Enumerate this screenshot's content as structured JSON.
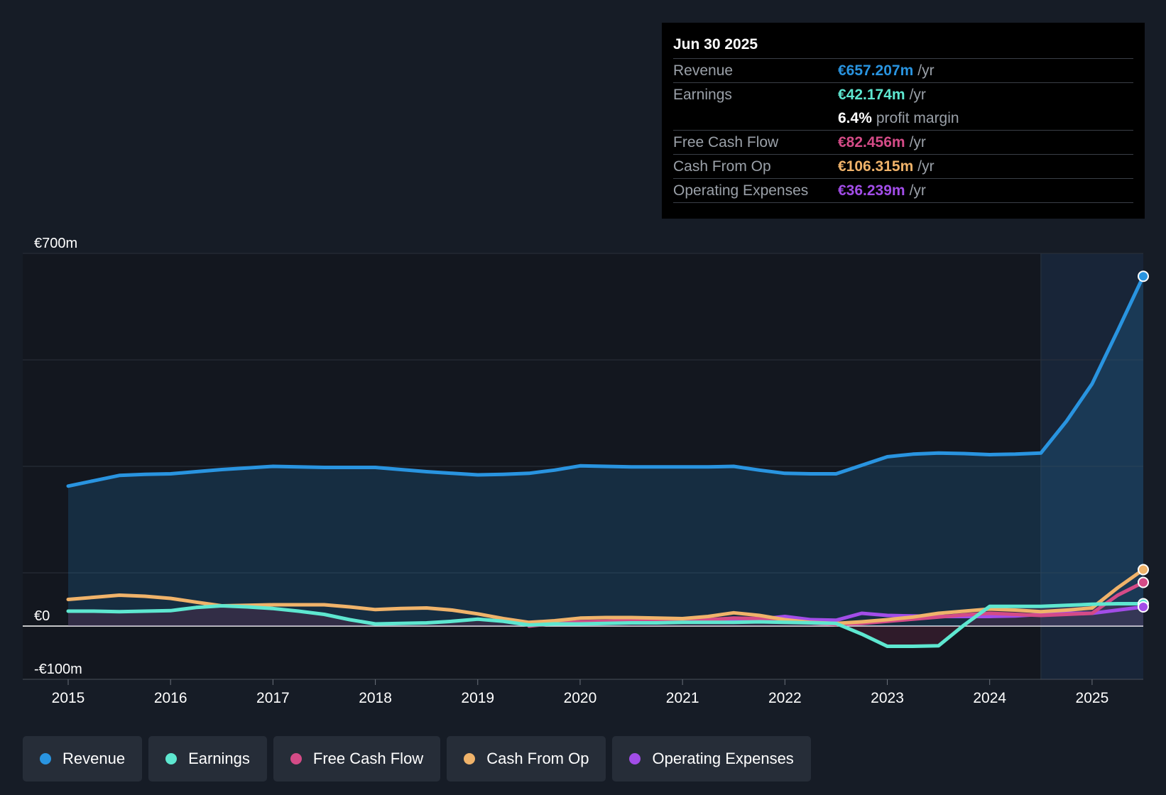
{
  "tooltip": {
    "date": "Jun 30 2025",
    "rows": [
      {
        "label": "Revenue",
        "value": "€657.207m",
        "unit": "/yr",
        "color": "#2994e0"
      },
      {
        "label": "Earnings",
        "value": "€42.174m",
        "unit": "/yr",
        "color": "#5ee7d0"
      },
      {
        "margin_value": "6.4%",
        "margin_label": "profit margin"
      },
      {
        "label": "Free Cash Flow",
        "value": "€82.456m",
        "unit": "/yr",
        "color": "#d44b87"
      },
      {
        "label": "Cash From Op",
        "value": "€106.315m",
        "unit": "/yr",
        "color": "#f0b36a"
      },
      {
        "label": "Operating Expenses",
        "value": "€36.239m",
        "unit": "/yr",
        "color": "#a24de8"
      }
    ]
  },
  "legend": [
    {
      "label": "Revenue",
      "color": "#2994e0"
    },
    {
      "label": "Earnings",
      "color": "#5ee7d0"
    },
    {
      "label": "Free Cash Flow",
      "color": "#d44b87"
    },
    {
      "label": "Cash From Op",
      "color": "#f0b36a"
    },
    {
      "label": "Operating Expenses",
      "color": "#a24de8"
    }
  ],
  "chart_data": {
    "type": "line",
    "title": "",
    "xlabel": "",
    "ylabel": "",
    "ylim": [
      -100,
      700
    ],
    "x_range": [
      2014.55,
      2025.5
    ],
    "forecast_start": 2024.5,
    "y_tick_labels": [
      {
        "value": 700,
        "label": "€700m"
      },
      {
        "value": 0,
        "label": "€0"
      },
      {
        "value": -100,
        "label": "-€100m"
      }
    ],
    "x_ticks": [
      "2015",
      "2016",
      "2017",
      "2018",
      "2019",
      "2020",
      "2021",
      "2022",
      "2023",
      "2024",
      "2025"
    ],
    "series": [
      {
        "name": "Revenue",
        "color": "#2994e0",
        "fill": true,
        "x": [
          2015,
          2015.25,
          2015.5,
          2015.75,
          2016,
          2016.25,
          2016.5,
          2016.75,
          2017,
          2017.25,
          2017.5,
          2017.75,
          2018,
          2018.25,
          2018.5,
          2018.75,
          2019,
          2019.25,
          2019.5,
          2019.75,
          2020,
          2020.25,
          2020.5,
          2020.75,
          2021,
          2021.25,
          2021.5,
          2021.75,
          2022,
          2022.25,
          2022.5,
          2022.75,
          2023,
          2023.25,
          2023.5,
          2023.75,
          2024,
          2024.25,
          2024.5,
          2024.75,
          2025,
          2025.25,
          2025.5
        ],
        "values": [
          263,
          273,
          283,
          285,
          286,
          290,
          294,
          297,
          300,
          299,
          298,
          298,
          298,
          294,
          290,
          287,
          284,
          285,
          287,
          293,
          301,
          300,
          299,
          299,
          299,
          299,
          300,
          293,
          287,
          286,
          286,
          302,
          318,
          323,
          325,
          324,
          322,
          323,
          325,
          385,
          455,
          555,
          657
        ]
      },
      {
        "name": "Earnings",
        "color": "#5ee7d0",
        "fill": false,
        "x": [
          2015,
          2015.25,
          2015.5,
          2015.75,
          2016,
          2016.25,
          2016.5,
          2016.75,
          2017,
          2017.25,
          2017.5,
          2017.75,
          2018,
          2018.25,
          2018.5,
          2018.75,
          2019,
          2019.25,
          2019.5,
          2019.75,
          2020,
          2020.25,
          2020.5,
          2020.75,
          2021,
          2021.25,
          2021.5,
          2021.75,
          2022,
          2022.25,
          2022.5,
          2022.75,
          2023,
          2023.25,
          2023.5,
          2023.75,
          2024,
          2024.25,
          2024.5,
          2024.75,
          2025,
          2025.25,
          2025.5
        ],
        "values": [
          28,
          28,
          27,
          28,
          29,
          35,
          38,
          36,
          33,
          28,
          22,
          12,
          4,
          5,
          6,
          9,
          13,
          9,
          2,
          4,
          4,
          5,
          6,
          6,
          7,
          7,
          7,
          8,
          7,
          6,
          5,
          -15,
          -38,
          -38,
          -37,
          2,
          37,
          37,
          37,
          39,
          41,
          42,
          42
        ]
      },
      {
        "name": "Free Cash Flow",
        "color": "#d44b87",
        "fill": false,
        "x": [
          2019.5,
          2019.75,
          2020,
          2020.25,
          2020.5,
          2020.75,
          2021,
          2021.25,
          2021.5,
          2021.75,
          2022,
          2022.25,
          2022.5,
          2022.75,
          2023,
          2023.25,
          2023.5,
          2023.75,
          2024,
          2024.25,
          2024.5,
          2024.75,
          2025,
          2025.25,
          2025.5
        ],
        "values": [
          0,
          5,
          8,
          9,
          10,
          10,
          10,
          12,
          15,
          14,
          10,
          6,
          3,
          5,
          9,
          13,
          17,
          21,
          24,
          22,
          20,
          22,
          24,
          58,
          82
        ]
      },
      {
        "name": "Cash From Op",
        "color": "#f0b36a",
        "fill": false,
        "x": [
          2015,
          2015.25,
          2015.5,
          2015.75,
          2016,
          2016.25,
          2016.5,
          2016.75,
          2017,
          2017.25,
          2017.5,
          2017.75,
          2018,
          2018.25,
          2018.5,
          2018.75,
          2019,
          2019.25,
          2019.5,
          2019.75,
          2020,
          2020.25,
          2020.5,
          2020.75,
          2021,
          2021.25,
          2021.5,
          2021.75,
          2022,
          2022.25,
          2022.5,
          2022.75,
          2023,
          2023.25,
          2023.5,
          2023.75,
          2024,
          2024.25,
          2024.5,
          2024.75,
          2025,
          2025.25,
          2025.5
        ],
        "values": [
          50,
          54,
          58,
          56,
          52,
          45,
          38,
          39,
          40,
          40,
          40,
          36,
          31,
          33,
          34,
          30,
          23,
          14,
          7,
          10,
          15,
          16,
          16,
          15,
          14,
          18,
          25,
          20,
          12,
          7,
          5,
          8,
          12,
          17,
          24,
          28,
          32,
          30,
          27,
          30,
          34,
          72,
          106
        ]
      },
      {
        "name": "Operating Expenses",
        "color": "#a24de8",
        "fill": false,
        "x": [
          2020.5,
          2020.75,
          2021,
          2021.25,
          2021.5,
          2021.75,
          2022,
          2022.25,
          2022.5,
          2022.75,
          2023,
          2023.25,
          2023.5,
          2023.75,
          2024,
          2024.25,
          2024.5,
          2024.75,
          2025,
          2025.25,
          2025.5
        ],
        "values": [
          8,
          9,
          10,
          11,
          12,
          13,
          18,
          12,
          11,
          24,
          20,
          19,
          18,
          18,
          18,
          19,
          22,
          24,
          24,
          30,
          36
        ]
      }
    ]
  }
}
